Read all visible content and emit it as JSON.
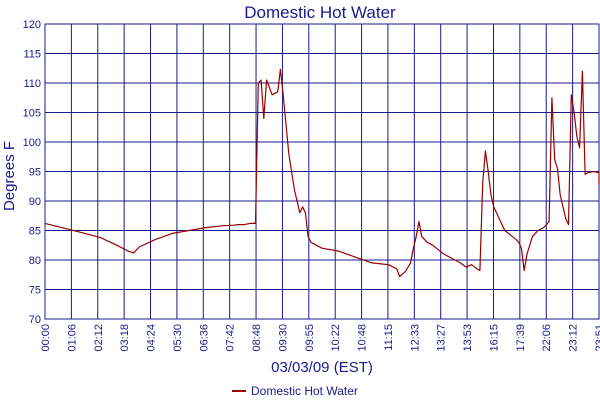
{
  "chart_data": {
    "type": "line",
    "title": "Domestic Hot Water",
    "xlabel": "03/03/09 (EST)",
    "ylabel": "Degrees F",
    "ylim": [
      70,
      120
    ],
    "yticks": [
      70,
      75,
      80,
      85,
      90,
      95,
      100,
      105,
      110,
      115,
      120
    ],
    "xlim": [
      "00:00",
      "23:51"
    ],
    "xticks": [
      "00:00",
      "01:06",
      "02:12",
      "03:18",
      "04:24",
      "05:30",
      "06:36",
      "07:42",
      "08:48",
      "09:30",
      "09:55",
      "10:22",
      "10:48",
      "11:15",
      "12:33",
      "13:27",
      "13:53",
      "16:15",
      "17:39",
      "22:06",
      "23:12",
      "23:51"
    ],
    "grid": true,
    "legend": "bottom",
    "colors": {
      "series": "#990000",
      "grid": "#1a1a8c",
      "text": "#1a1a8c"
    },
    "series": [
      {
        "name": "Domestic Hot Water",
        "points": [
          [
            0.0,
            86.2
          ],
          [
            0.03,
            85.5
          ],
          [
            0.06,
            84.8
          ],
          [
            0.1,
            83.8
          ],
          [
            0.13,
            82.5
          ],
          [
            0.15,
            81.5
          ],
          [
            0.16,
            81.2
          ],
          [
            0.17,
            82.2
          ],
          [
            0.2,
            83.5
          ],
          [
            0.23,
            84.5
          ],
          [
            0.26,
            85.0
          ],
          [
            0.29,
            85.5
          ],
          [
            0.32,
            85.8
          ],
          [
            0.34,
            85.9
          ],
          [
            0.35,
            86.0
          ],
          [
            0.36,
            86.0
          ],
          [
            0.37,
            86.2
          ],
          [
            0.38,
            86.2
          ],
          [
            0.385,
            110.0
          ],
          [
            0.39,
            110.5
          ],
          [
            0.395,
            104.0
          ],
          [
            0.4,
            110.5
          ],
          [
            0.41,
            108.0
          ],
          [
            0.42,
            108.5
          ],
          [
            0.425,
            112.3
          ],
          [
            0.43,
            108.0
          ],
          [
            0.44,
            98.0
          ],
          [
            0.45,
            92.0
          ],
          [
            0.46,
            88.0
          ],
          [
            0.465,
            89.0
          ],
          [
            0.47,
            88.0
          ],
          [
            0.475,
            84.0
          ],
          [
            0.48,
            83.0
          ],
          [
            0.5,
            82.0
          ],
          [
            0.53,
            81.5
          ],
          [
            0.56,
            80.5
          ],
          [
            0.59,
            79.5
          ],
          [
            0.62,
            79.2
          ],
          [
            0.635,
            78.5
          ],
          [
            0.64,
            77.2
          ],
          [
            0.65,
            78.0
          ],
          [
            0.66,
            79.5
          ],
          [
            0.665,
            82.0
          ],
          [
            0.67,
            84.0
          ],
          [
            0.675,
            86.5
          ],
          [
            0.68,
            84.0
          ],
          [
            0.69,
            83.0
          ],
          [
            0.7,
            82.5
          ],
          [
            0.72,
            81.0
          ],
          [
            0.74,
            80.0
          ],
          [
            0.75,
            79.5
          ],
          [
            0.76,
            78.8
          ],
          [
            0.77,
            79.2
          ],
          [
            0.78,
            78.5
          ],
          [
            0.785,
            78.2
          ],
          [
            0.79,
            93.0
          ],
          [
            0.795,
            98.5
          ],
          [
            0.8,
            95.0
          ],
          [
            0.805,
            91.0
          ],
          [
            0.81,
            89.0
          ],
          [
            0.82,
            87.0
          ],
          [
            0.83,
            85.0
          ],
          [
            0.85,
            83.5
          ],
          [
            0.855,
            83.0
          ],
          [
            0.86,
            82.0
          ],
          [
            0.865,
            78.2
          ],
          [
            0.87,
            81.0
          ],
          [
            0.88,
            84.0
          ],
          [
            0.89,
            85.0
          ],
          [
            0.9,
            85.5
          ],
          [
            0.91,
            86.5
          ],
          [
            0.915,
            107.5
          ],
          [
            0.92,
            97.0
          ],
          [
            0.925,
            95.5
          ],
          [
            0.93,
            91.0
          ],
          [
            0.935,
            89.0
          ],
          [
            0.94,
            87.0
          ],
          [
            0.945,
            86.0
          ],
          [
            0.95,
            108.0
          ],
          [
            0.955,
            105.0
          ],
          [
            0.96,
            101.0
          ],
          [
            0.965,
            99.0
          ],
          [
            0.97,
            112.0
          ],
          [
            0.975,
            94.5
          ],
          [
            0.98,
            94.8
          ],
          [
            0.99,
            95.0
          ],
          [
            1.0,
            94.8
          ],
          [
            1.01,
            94.5
          ],
          [
            1.02,
            93.5
          ],
          [
            1.03,
            92.8
          ]
        ]
      }
    ]
  }
}
